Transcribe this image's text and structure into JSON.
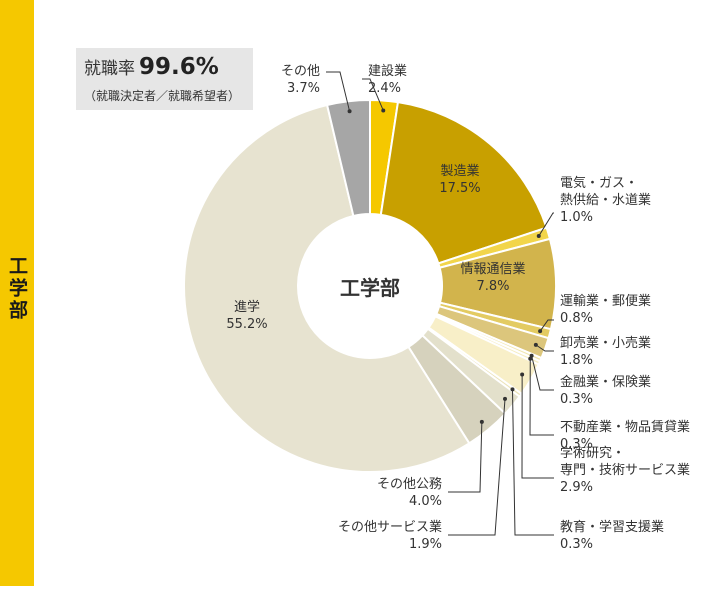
{
  "sidebar": {
    "label": "工学部",
    "color": "#f5c800"
  },
  "employment_rate": {
    "label": "就職率",
    "value": "99.6%",
    "note": "（就職決定者／就職希望者）"
  },
  "chart_data": {
    "type": "pie",
    "donut": true,
    "center_label": "工学部",
    "slices": [
      {
        "lines": [
          "建設業"
        ],
        "value": 2.4,
        "color": "#f5c800",
        "label_side": "outside"
      },
      {
        "lines": [
          "製造業"
        ],
        "value": 17.5,
        "color": "#c8a000",
        "label_side": "inside"
      },
      {
        "lines": [
          "電気・ガス・",
          "熱供給・水道業"
        ],
        "value": 1.0,
        "color": "#f2d54a",
        "label_side": "outside"
      },
      {
        "lines": [
          "情報通信業"
        ],
        "value": 7.8,
        "color": "#d2b44c",
        "label_side": "inside"
      },
      {
        "lines": [
          "運輸業・郵便業"
        ],
        "value": 0.8,
        "color": "#e3cb62",
        "label_side": "outside"
      },
      {
        "lines": [
          "卸売業・小売業"
        ],
        "value": 1.8,
        "color": "#dcc67c",
        "label_side": "outside"
      },
      {
        "lines": [
          "金融業・保険業"
        ],
        "value": 0.3,
        "color": "#f1e6ae",
        "label_side": "outside"
      },
      {
        "lines": [
          "不動産業・物品賃貸業"
        ],
        "value": 0.3,
        "color": "#f6edc2",
        "label_side": "outside"
      },
      {
        "lines": [
          "学術研究・",
          "専門・技術サービス業"
        ],
        "value": 2.9,
        "color": "#f8efc8",
        "label_side": "outside"
      },
      {
        "lines": [
          "教育・学習支援業"
        ],
        "value": 0.3,
        "color": "#ebe2b8",
        "label_side": "outside"
      },
      {
        "lines": [
          "その他サービス業"
        ],
        "value": 1.9,
        "color": "#e3e0cb",
        "label_side": "outside"
      },
      {
        "lines": [
          "その他公務"
        ],
        "value": 4.0,
        "color": "#d6d2bd",
        "label_side": "outside"
      },
      {
        "lines": [
          "進学"
        ],
        "value": 55.2,
        "color": "#e7e3d0",
        "label_side": "inside"
      },
      {
        "lines": [
          "その他"
        ],
        "value": 3.7,
        "color": "#a6a6a6",
        "label_side": "outside"
      }
    ],
    "value_suffix": "%"
  }
}
